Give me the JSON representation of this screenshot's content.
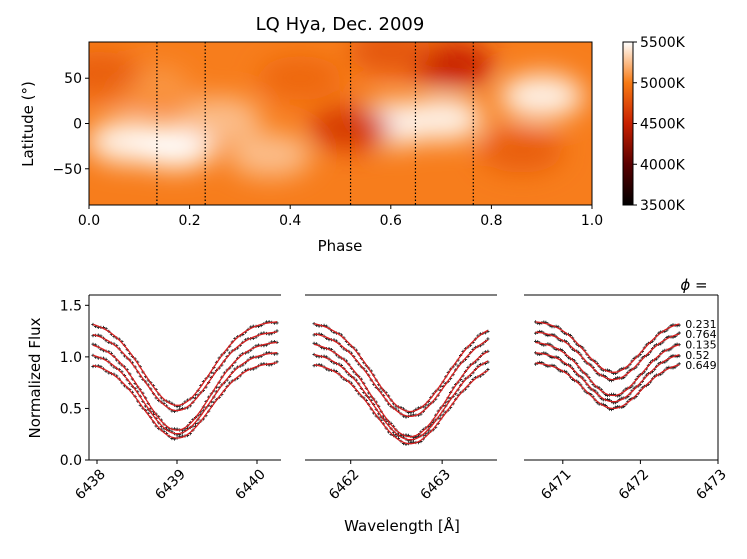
{
  "chart_data": [
    {
      "type": "heatmap",
      "title": "LQ Hya, Dec. 2009",
      "xlabel": "Phase",
      "ylabel": "Latitude (°)",
      "xlim": [
        0.0,
        1.0
      ],
      "ylim": [
        -90,
        90
      ],
      "x_ticks": [
        0.0,
        0.2,
        0.4,
        0.6,
        0.8,
        1.0
      ],
      "x_tick_labels": [
        "0.0",
        "0.2",
        "0.4",
        "0.6",
        "0.8",
        "1.0"
      ],
      "y_ticks": [
        50,
        0,
        -50
      ],
      "y_tick_labels": [
        "50",
        "0",
        "−50"
      ],
      "observed_phases": [
        0.135,
        0.231,
        0.52,
        0.649,
        0.764
      ],
      "temperature_spots": [
        {
          "phase": 0.08,
          "lat": -20,
          "temp": 5450
        },
        {
          "phase": 0.17,
          "lat": -25,
          "temp": 5500
        },
        {
          "phase": 0.26,
          "lat": 5,
          "temp": 5250
        },
        {
          "phase": 0.12,
          "lat": 40,
          "temp": 5100
        },
        {
          "phase": 0.6,
          "lat": 0,
          "temp": 5500
        },
        {
          "phase": 0.7,
          "lat": 5,
          "temp": 5450
        },
        {
          "phase": 0.9,
          "lat": 30,
          "temp": 5450
        },
        {
          "phase": 0.36,
          "lat": -35,
          "temp": 5250
        },
        {
          "phase": 0.52,
          "lat": -5,
          "temp": 4650
        },
        {
          "phase": 0.72,
          "lat": 65,
          "temp": 4500
        },
        {
          "phase": 0.6,
          "lat": 80,
          "temp": 4800
        },
        {
          "phase": 0.86,
          "lat": -30,
          "temp": 4850
        },
        {
          "phase": 0.42,
          "lat": 50,
          "temp": 4900
        },
        {
          "phase": 0.02,
          "lat": 55,
          "temp": 4850
        }
      ],
      "colorbar": {
        "min": 3500,
        "max": 5500,
        "ticks": [
          5500,
          5000,
          4500,
          4000,
          3500
        ],
        "tick_labels": [
          "5500K",
          "5000K",
          "4500K",
          "4000K",
          "3500K"
        ]
      }
    },
    {
      "type": "line",
      "ylabel": "Normalized Flux",
      "xlabel": "Wavelength [Å]",
      "ylim": [
        0.0,
        1.6
      ],
      "y_ticks": [
        0.0,
        0.5,
        1.0,
        1.5
      ],
      "y_tick_labels": [
        "0.0",
        "0.5",
        "1.0",
        "1.5"
      ],
      "legend_title": "ϕ =",
      "phase_labels": [
        "0.231",
        "0.764",
        "0.135",
        "0.52",
        "0.649"
      ],
      "offsets": [
        1.35,
        1.25,
        1.15,
        1.05,
        0.95
      ],
      "panels": [
        {
          "xlim": [
            6437.9,
            6440.3
          ],
          "x_ticks": [
            6438,
            6439,
            6440
          ],
          "x_tick_labels": [
            "6438",
            "6439",
            "6440"
          ],
          "line_start": 6437.95,
          "line_end": 6440.25,
          "center": 6439.0,
          "depth": 0.82,
          "width": 0.42
        },
        {
          "xlim": [
            6461.5,
            6463.6
          ],
          "x_ticks": [
            6462,
            6463
          ],
          "x_tick_labels": [
            "6462",
            "6463"
          ],
          "line_start": 6461.6,
          "line_end": 6463.5,
          "center": 6462.65,
          "depth": 0.88,
          "width": 0.4
        },
        {
          "xlim": [
            6470.5,
            6473.0
          ],
          "x_ticks": [
            6471,
            6472,
            6473
          ],
          "x_tick_labels": [
            "6471",
            "6472",
            "6473"
          ],
          "line_start": 6470.65,
          "line_end": 6472.5,
          "center": 6471.65,
          "depth": 0.5,
          "width": 0.36
        }
      ]
    }
  ]
}
